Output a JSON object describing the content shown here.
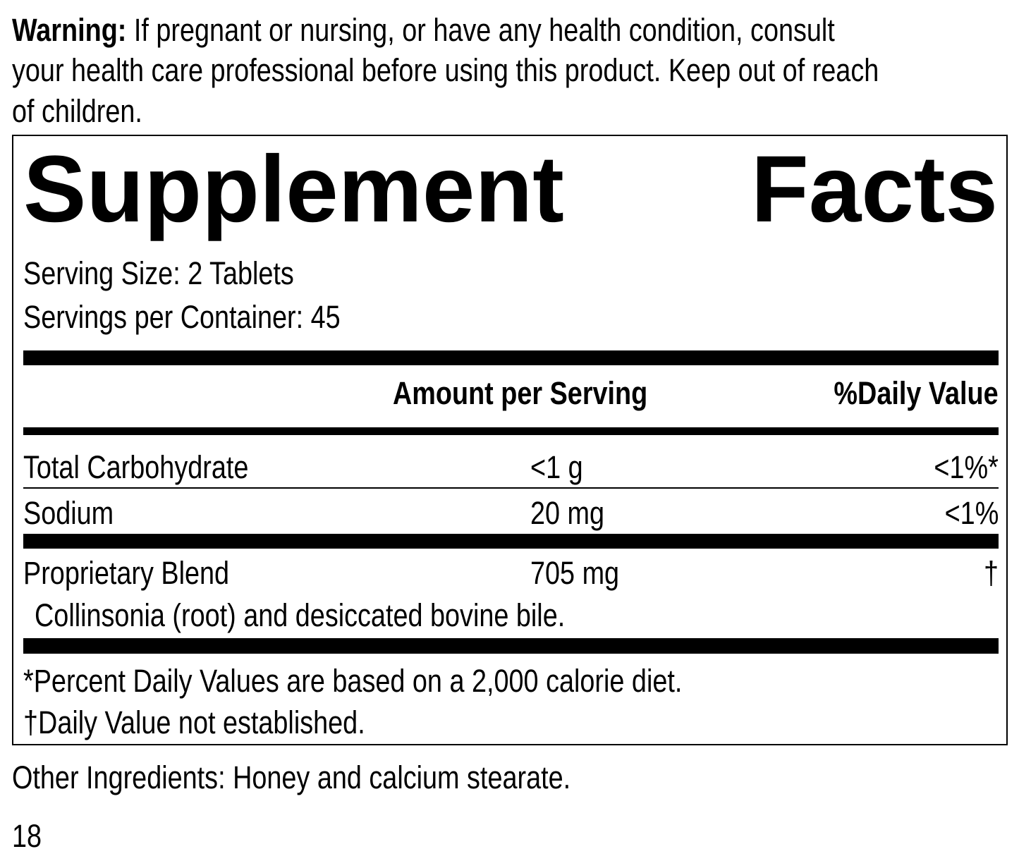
{
  "warning": {
    "label": "Warning:",
    "lines": [
      "If pregnant or nursing, or have any health condition, consult",
      "your health care professional before using this product. Keep out of reach",
      "of children."
    ]
  },
  "facts": {
    "title_word1": "Supplement",
    "title_word2": "Facts",
    "serving_size": "Serving Size: 2 Tablets",
    "servings_per_container": "Servings per Container: 45",
    "header": {
      "amount": "Amount per Serving",
      "daily_value": "%Daily Value"
    },
    "rows": [
      {
        "name": "Total Carbohydrate",
        "amount": "<1 g",
        "dv": "<1%*"
      },
      {
        "name": "Sodium",
        "amount": "20 mg",
        "dv": "<1%"
      },
      {
        "name": "Proprietary Blend",
        "amount": "705 mg",
        "dv": "†",
        "detail": "Collinsonia (root) and desiccated bovine bile."
      }
    ],
    "footnotes": [
      "*Percent Daily Values are based on a 2,000 calorie diet.",
      "†Daily Value not established."
    ]
  },
  "other_ingredients": "Other Ingredients: Honey and calcium stearate.",
  "page_number": "18"
}
